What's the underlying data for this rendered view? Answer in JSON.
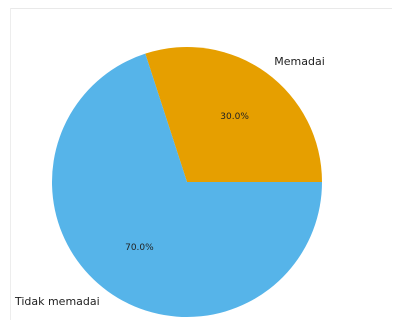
{
  "chart_data": {
    "type": "pie",
    "title": "",
    "slices": [
      {
        "label": "Memadai",
        "value": 30.0,
        "pct_label": "30.0%",
        "color": "#E69F00"
      },
      {
        "label": "Tidak memadai",
        "value": 70.0,
        "pct_label": "70.0%",
        "color": "#56B4E9"
      }
    ],
    "start_angle_deg": 0,
    "direction": "counterclockwise",
    "legend": "none"
  }
}
